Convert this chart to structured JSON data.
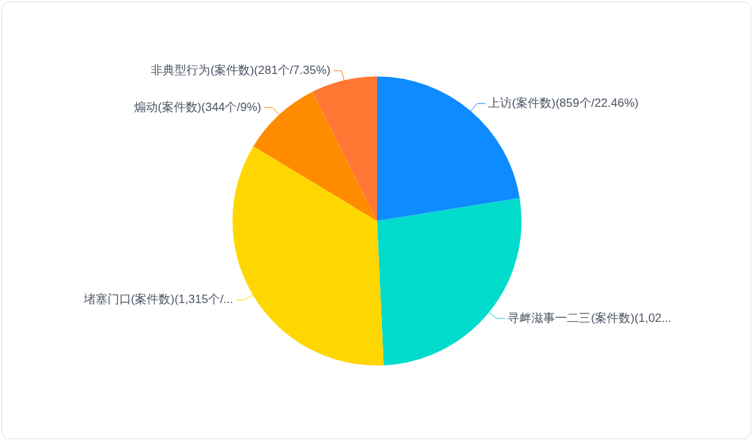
{
  "chart_data": {
    "type": "pie",
    "categories": [
      "上访(案件数)(859个/22.46%)",
      "寻衅滋事一二三(案件数)(1,02...",
      "堵塞门口(案件数)(1,315个/...",
      "煽动(案件数)(344个/9%)",
      "非典型行为(案件数)(281个/7.35%)"
    ],
    "values": [
      859,
      1025,
      1315,
      344,
      281
    ],
    "colors": [
      "#0e8cff",
      "#00dbcb",
      "#ffd700",
      "#ff8c00",
      "#ff7733"
    ],
    "legend": false
  }
}
